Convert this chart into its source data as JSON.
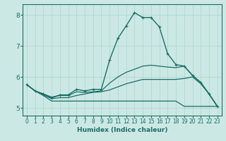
{
  "title": "",
  "xlabel": "Humidex (Indice chaleur)",
  "xlim": [
    -0.5,
    23.5
  ],
  "ylim": [
    4.75,
    8.35
  ],
  "xticks": [
    0,
    1,
    2,
    3,
    4,
    5,
    6,
    7,
    8,
    9,
    10,
    11,
    12,
    13,
    14,
    15,
    16,
    17,
    18,
    19,
    20,
    21,
    22,
    23
  ],
  "yticks": [
    5,
    6,
    7,
    8
  ],
  "bg_color": "#cce8e4",
  "grid_color": "#b0d8d4",
  "line_color": "#1a6e66",
  "lines": [
    {
      "x": [
        0,
        1,
        2,
        3,
        4,
        5,
        6,
        7,
        8,
        9,
        10,
        11,
        12,
        13,
        14,
        15,
        16,
        17,
        18,
        19,
        20,
        21,
        22,
        23
      ],
      "y": [
        5.75,
        5.55,
        5.45,
        5.32,
        5.42,
        5.42,
        5.6,
        5.55,
        5.6,
        5.6,
        6.55,
        7.25,
        7.65,
        8.08,
        7.92,
        7.92,
        7.62,
        6.75,
        6.4,
        6.35,
        6.05,
        5.82,
        5.45,
        5.05
      ],
      "marker": true,
      "lw": 1.0
    },
    {
      "x": [
        0,
        1,
        2,
        3,
        4,
        5,
        6,
        7,
        8,
        9,
        10,
        11,
        12,
        13,
        14,
        15,
        16,
        17,
        18,
        19,
        20,
        21,
        22,
        23
      ],
      "y": [
        5.75,
        5.55,
        5.45,
        5.35,
        5.4,
        5.4,
        5.52,
        5.5,
        5.52,
        5.55,
        5.8,
        6.0,
        6.15,
        6.25,
        6.35,
        6.38,
        6.35,
        6.32,
        6.3,
        6.35,
        6.05,
        5.82,
        5.45,
        5.05
      ],
      "marker": false,
      "lw": 0.9
    },
    {
      "x": [
        0,
        1,
        2,
        3,
        4,
        5,
        6,
        7,
        8,
        9,
        10,
        11,
        12,
        13,
        14,
        15,
        16,
        17,
        18,
        19,
        20,
        21,
        22,
        23
      ],
      "y": [
        5.75,
        5.55,
        5.42,
        5.3,
        5.33,
        5.33,
        5.4,
        5.45,
        5.5,
        5.52,
        5.58,
        5.68,
        5.78,
        5.85,
        5.92,
        5.92,
        5.92,
        5.92,
        5.92,
        5.95,
        6.0,
        5.78,
        5.45,
        5.05
      ],
      "marker": false,
      "lw": 0.9
    },
    {
      "x": [
        0,
        1,
        2,
        3,
        4,
        5,
        6,
        7,
        8,
        9,
        10,
        11,
        12,
        13,
        14,
        15,
        16,
        17,
        18,
        19,
        20,
        21,
        22,
        23
      ],
      "y": [
        5.75,
        5.55,
        5.4,
        5.22,
        5.22,
        5.22,
        5.22,
        5.22,
        5.22,
        5.22,
        5.22,
        5.22,
        5.22,
        5.22,
        5.22,
        5.22,
        5.22,
        5.22,
        5.22,
        5.05,
        5.05,
        5.05,
        5.05,
        5.05
      ],
      "marker": false,
      "lw": 0.9
    }
  ]
}
